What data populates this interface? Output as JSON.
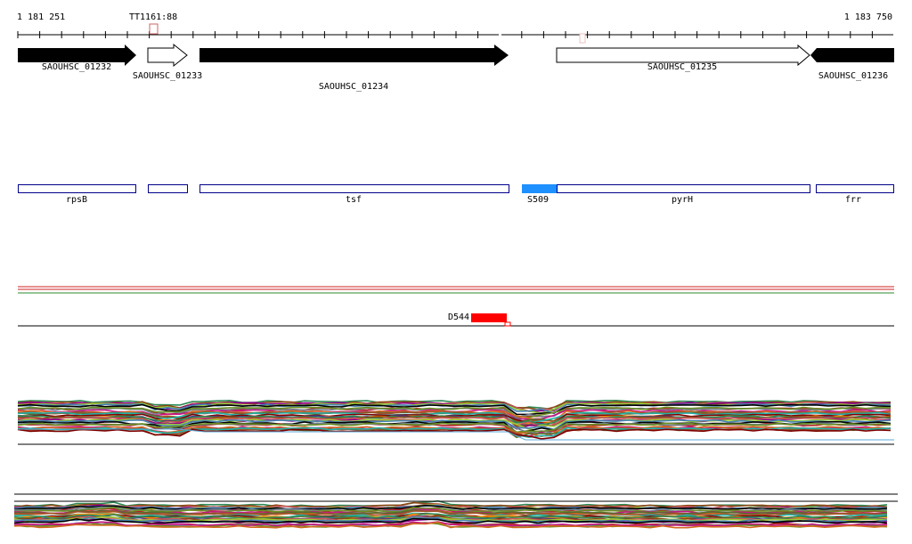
{
  "ruler": {
    "start_coord": "1 181 251",
    "end_coord": "1 183 750",
    "marker_label": "TT1161:88"
  },
  "genes": [
    {
      "locus": "SAOUHSC_01232",
      "strand": "+",
      "fill": "black",
      "symbol": "rpsB"
    },
    {
      "locus": "SAOUHSC_01233",
      "strand": "+",
      "fill": "white",
      "symbol": ""
    },
    {
      "locus": "SAOUHSC_01234",
      "strand": "+",
      "fill": "black",
      "symbol": "tsf"
    },
    {
      "locus": "SAOUHSC_01235",
      "strand": "+",
      "fill": "white",
      "symbol": "pyrH"
    },
    {
      "locus": "SAOUHSC_01236",
      "strand": "+",
      "fill": "black",
      "symbol": "frr"
    }
  ],
  "annotations": {
    "s_feature_label": "S509",
    "d_feature_label": "D544"
  },
  "colors": {
    "gene_box_border": "#00008b",
    "s_feature": "#1e90ff",
    "d_feature": "#ff0000",
    "marker": "#cc6666",
    "line_top_red": "#d02020",
    "line_top_green": "#2e8b2e"
  },
  "expression_palette": [
    "#2e8b57",
    "#8b4513",
    "#cd5c5c",
    "#8b008b",
    "#9acd32",
    "#4682b4",
    "#000000",
    "#b22222",
    "#708090",
    "#6b8e23",
    "#c71585",
    "#d2691e",
    "#556b2f",
    "#a0522d",
    "#20b2aa",
    "#800000",
    "#ff8c00",
    "#483d8b"
  ]
}
